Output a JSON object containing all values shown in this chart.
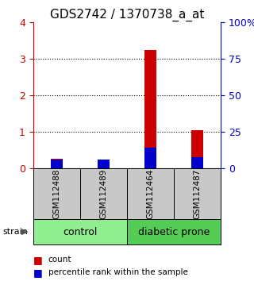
{
  "title": "GDS2742 / 1370738_a_at",
  "samples": [
    "GSM112488",
    "GSM112489",
    "GSM112464",
    "GSM112487"
  ],
  "groups": [
    {
      "name": "control",
      "indices": [
        0,
        1
      ],
      "color": "#90ee90"
    },
    {
      "name": "diabetic prone",
      "indices": [
        2,
        3
      ],
      "color": "#55cc55"
    }
  ],
  "count_values": [
    0.28,
    0.18,
    3.25,
    1.05
  ],
  "percentile_values": [
    6,
    6,
    14.5,
    8
  ],
  "left_ylim": [
    0,
    4
  ],
  "right_ylim": [
    0,
    100
  ],
  "left_yticks": [
    0,
    1,
    2,
    3,
    4
  ],
  "right_yticks": [
    0,
    25,
    50,
    75,
    100
  ],
  "right_yticklabels": [
    "0",
    "25",
    "50",
    "75",
    "100%"
  ],
  "count_color": "#cc0000",
  "percentile_color": "#0000cc",
  "bar_width": 0.25,
  "sample_box_color": "#c8c8c8",
  "left_axis_color": "#cc0000",
  "right_axis_color": "#0000cc",
  "legend_count_label": "count",
  "legend_pct_label": "percentile rank within the sample",
  "strain_label": "strain",
  "title_fontsize": 11,
  "tick_fontsize": 9,
  "sample_fontsize": 7.5,
  "group_fontsize": 9
}
